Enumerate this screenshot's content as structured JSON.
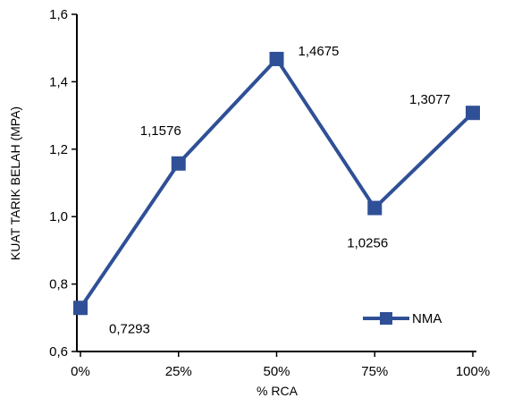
{
  "chart_data": {
    "type": "line",
    "categories": [
      "0%",
      "25%",
      "50%",
      "75%",
      "100%"
    ],
    "series": [
      {
        "name": "NMA",
        "values": [
          0.7293,
          1.1576,
          1.4675,
          1.0256,
          1.3077
        ]
      }
    ],
    "data_labels": [
      "0,7293",
      "1,1576",
      "1,4675",
      "1,0256",
      "1,3077"
    ],
    "xlabel": "% RCA",
    "ylabel": "KUAT TARIK BELAH (MPA)",
    "ylim": [
      0.6,
      1.6
    ],
    "yticks": [
      0.6,
      0.8,
      1.0,
      1.2,
      1.4,
      1.6
    ],
    "ytick_labels": [
      "0,6",
      "0,8",
      "1,0",
      "1,2",
      "1,4",
      "1,6"
    ],
    "grid": false,
    "legend_position": "bottom-right",
    "colors": {
      "series": "#2F5096",
      "axis": "#000000"
    }
  }
}
